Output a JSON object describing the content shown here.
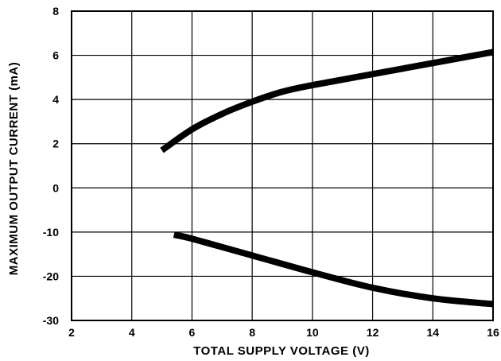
{
  "chart_data": {
    "type": "line",
    "title": "",
    "xlabel": "TOTAL SUPPLY VOLTAGE (V)",
    "ylabel": "MAXIMUM OUTPUT CURRENT (mA)",
    "xlim": [
      2,
      16
    ],
    "x_ticks": [
      2,
      4,
      6,
      8,
      10,
      12,
      14,
      16
    ],
    "y_tick_labels": [
      "8",
      "6",
      "4",
      "2",
      "0",
      "-10",
      "-20",
      "-30"
    ],
    "y_tick_values": [
      8,
      6,
      4,
      2,
      0,
      -10,
      -20,
      -30
    ],
    "grid": true,
    "legend": "none",
    "series": [
      {
        "color": "#000000",
        "x": [
          5.0,
          6.0,
          7.0,
          8.0,
          9.0,
          10.0,
          12.0,
          14.0,
          16.0
        ],
        "y": [
          1.7,
          2.65,
          3.35,
          3.9,
          4.35,
          4.65,
          5.15,
          5.65,
          6.15
        ]
      },
      {
        "color": "#000000",
        "x": [
          5.4,
          6.0,
          8.0,
          10.0,
          12.0,
          14.0,
          16.0
        ],
        "y": [
          -10.6,
          -11.5,
          -15.3,
          -19.1,
          -22.6,
          -25.0,
          -26.3
        ]
      }
    ]
  }
}
